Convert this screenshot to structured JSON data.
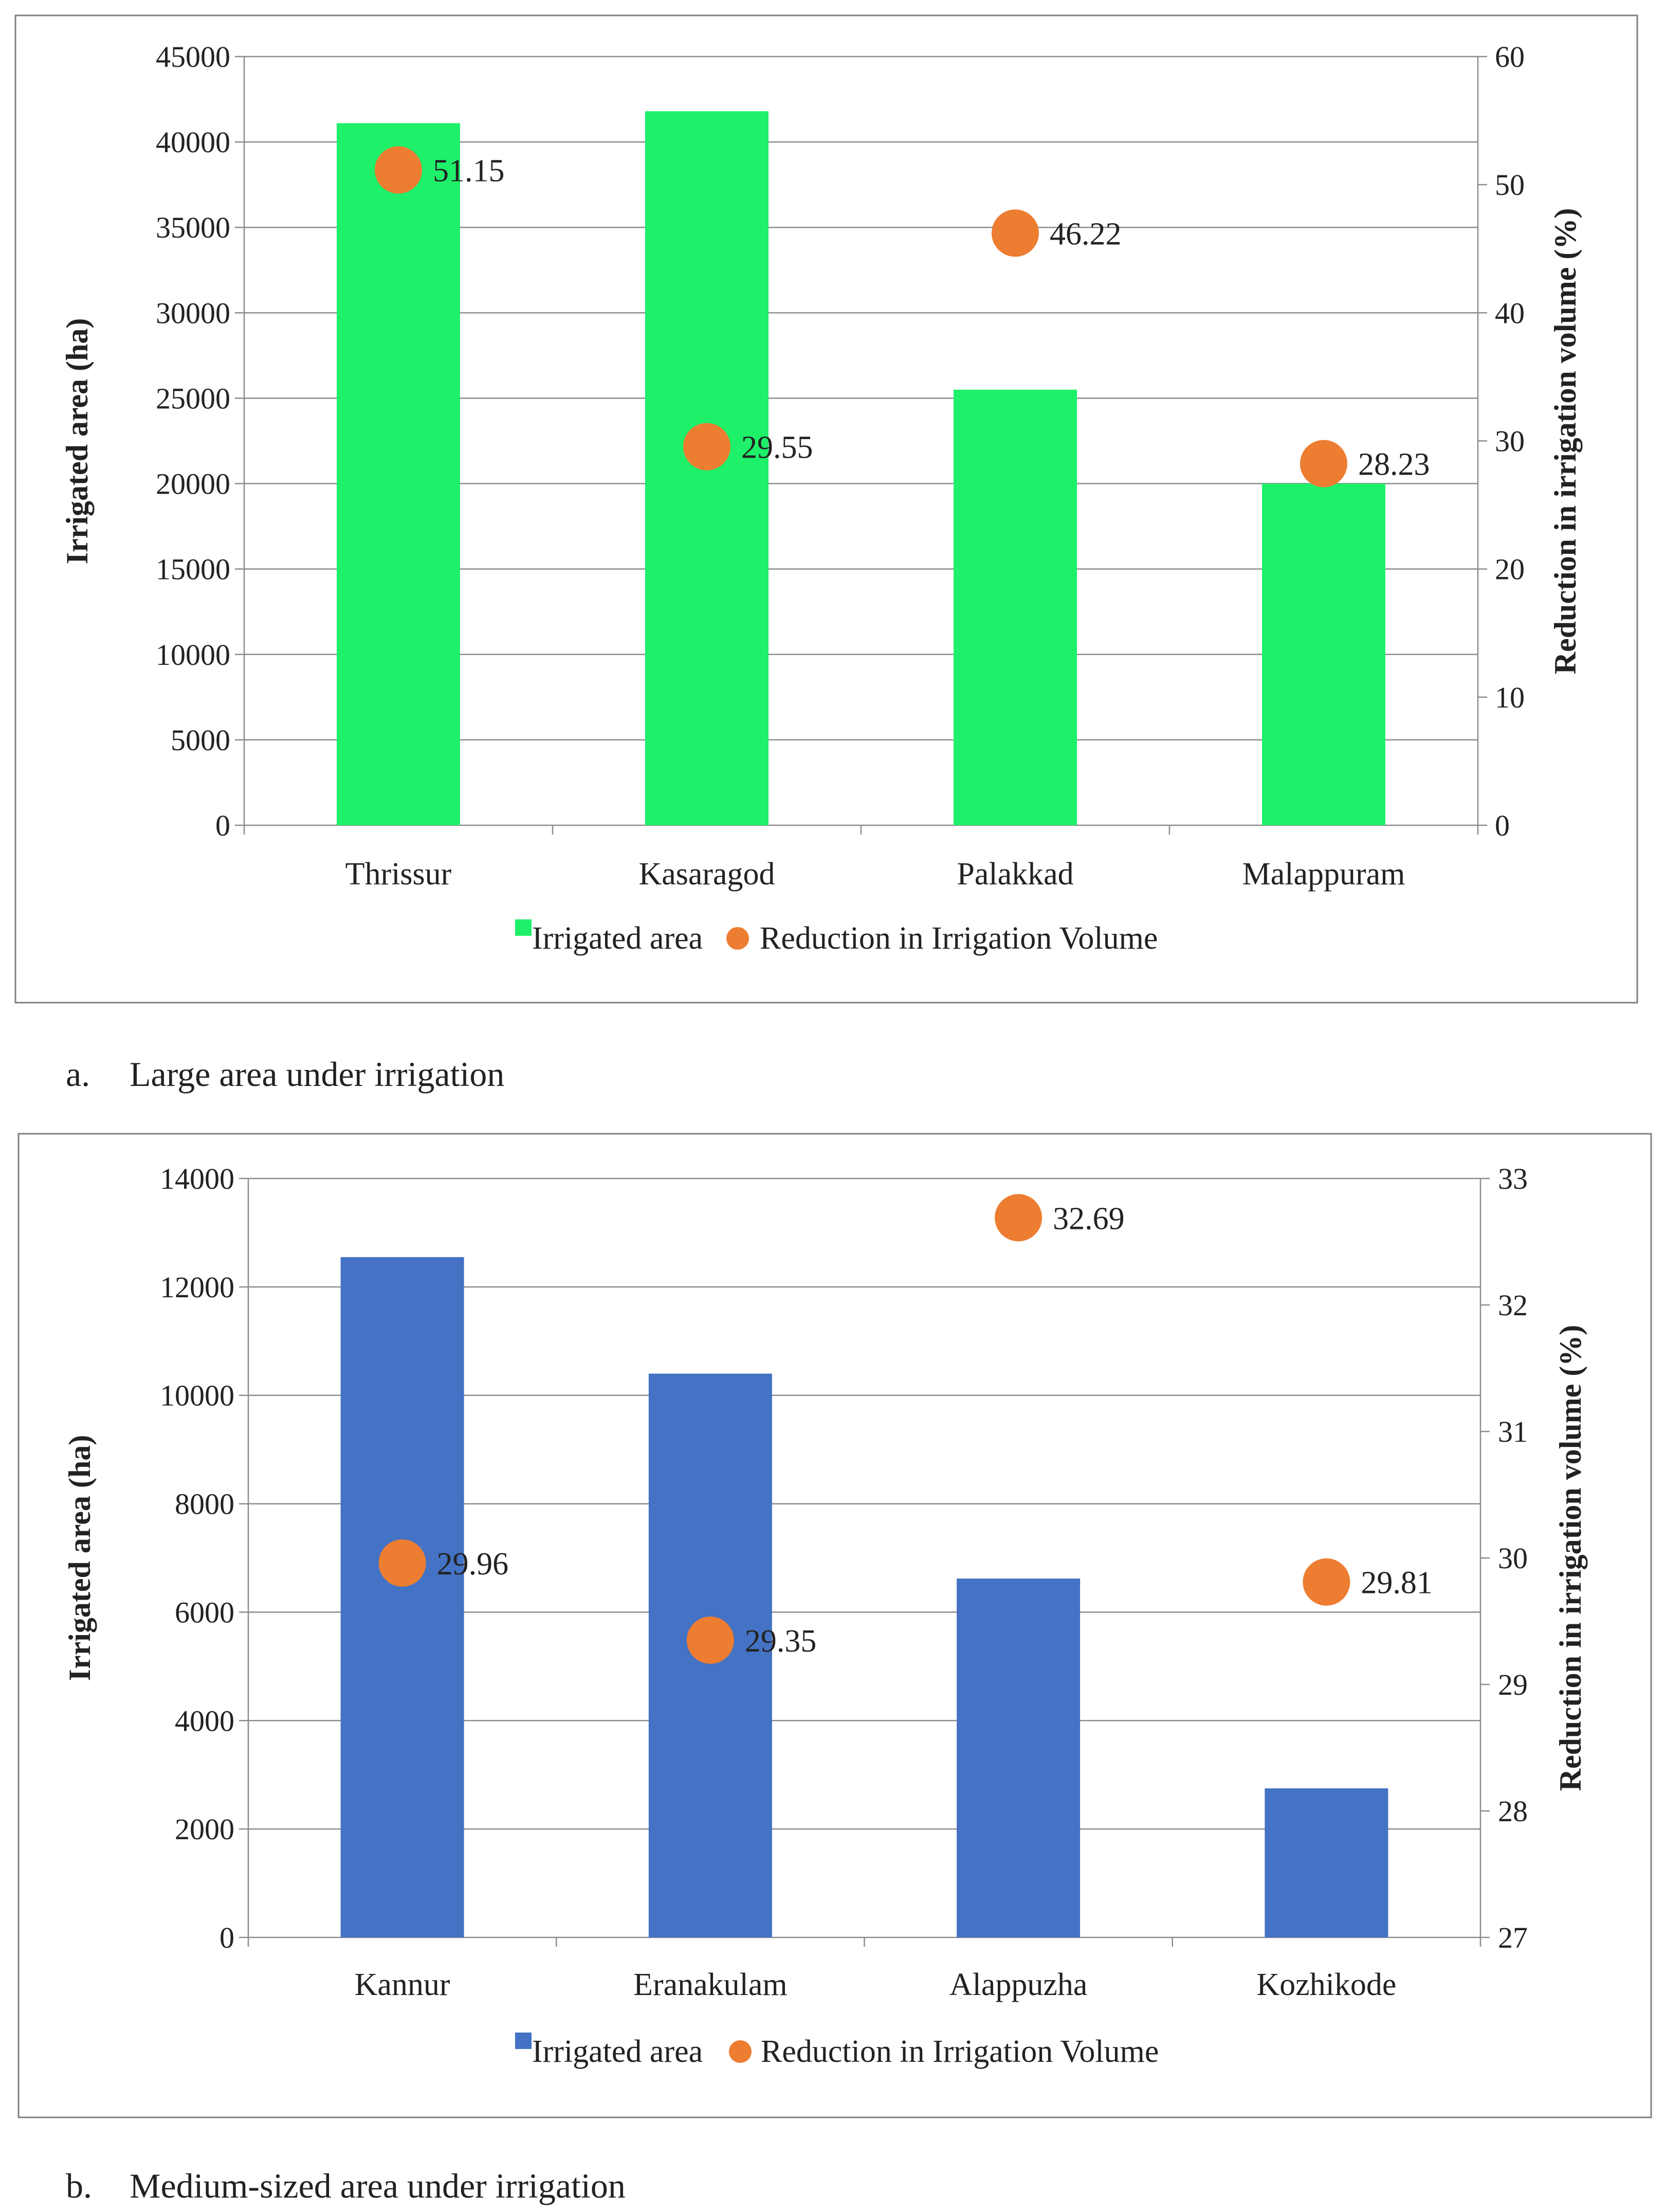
{
  "chart_data": [
    {
      "type": "bar+scatter",
      "caption_label": "a.",
      "caption_text": "Large area under irrigation",
      "categories": [
        "Thrissur",
        "Kasaragod",
        "Palakkad",
        "Malappuram"
      ],
      "series": [
        {
          "name": "Irrigated area",
          "axis": "left",
          "kind": "bar",
          "values": [
            41100,
            41800,
            25500,
            20000
          ]
        },
        {
          "name": "Reduction in Irrigation Volume",
          "axis": "right",
          "kind": "scatter",
          "values": [
            51.15,
            29.55,
            46.22,
            28.23
          ]
        }
      ],
      "point_labels": [
        "51.15",
        "29.55",
        "46.22",
        "28.23"
      ],
      "ylabel": "Irrigated area (ha)",
      "y2label": "Reduction in irrigation volume (%)",
      "ylim": [
        0,
        45000
      ],
      "yticks": [
        "0",
        "5000",
        "10000",
        "15000",
        "20000",
        "25000",
        "30000",
        "35000",
        "40000",
        "45000"
      ],
      "y2lim": [
        0,
        60
      ],
      "y2ticks": [
        "0",
        "10",
        "20",
        "30",
        "40",
        "50",
        "60"
      ],
      "legend": [
        "Irrigated area",
        "Reduction in Irrigation Volume"
      ],
      "legend_position": "bottom",
      "grid": true,
      "bar_color": "#1ef06a",
      "marker_color": "#ed7d31"
    },
    {
      "type": "bar+scatter",
      "caption_label": "b.",
      "caption_text": "Medium-sized area under irrigation",
      "categories": [
        "Kannur",
        "Eranakulam",
        "Alappuzha",
        "Kozhikode"
      ],
      "series": [
        {
          "name": "Irrigated area",
          "axis": "left",
          "kind": "bar",
          "values": [
            12550,
            10400,
            6620,
            2750
          ]
        },
        {
          "name": "Reduction in Irrigation Volume",
          "axis": "right",
          "kind": "scatter",
          "values": [
            29.96,
            29.35,
            32.69,
            29.81
          ]
        }
      ],
      "point_labels": [
        "29.96",
        "29.35",
        "32.69",
        "29.81"
      ],
      "ylabel": "Irrigated area (ha)",
      "y2label": "Reduction in irrigation volume (%)",
      "ylim": [
        0,
        14000
      ],
      "yticks": [
        "0",
        "2000",
        "4000",
        "6000",
        "8000",
        "10000",
        "12000",
        "14000"
      ],
      "y2lim": [
        27,
        33
      ],
      "y2ticks": [
        "27",
        "28",
        "29",
        "30",
        "31",
        "32",
        "33"
      ],
      "legend": [
        "Irrigated area",
        "Reduction in Irrigation Volume"
      ],
      "legend_position": "bottom",
      "grid": true,
      "bar_color": "#4472c4",
      "marker_color": "#ed7d31"
    }
  ]
}
